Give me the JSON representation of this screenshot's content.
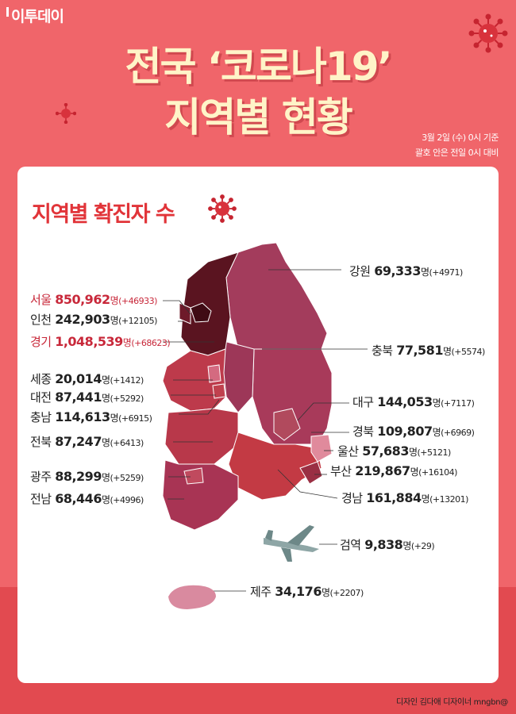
{
  "logo": "이투데이",
  "title_line1": "전국 ‘코로나19’",
  "title_line2": "지역별 현황",
  "basis_line1": "3월 2일 (수) 0시 기준",
  "basis_line2": "괄호 안은 전일 0시 대비",
  "section_title": "지역별 확진자 수",
  "unit": "명",
  "regions": {
    "seoul": {
      "name": "서울",
      "count": "850,962",
      "change": "(+46933)"
    },
    "incheon": {
      "name": "인천",
      "count": "242,903",
      "change": "(+12105)"
    },
    "gyeonggi": {
      "name": "경기",
      "count": "1,048,539",
      "change": "(+68623)"
    },
    "sejong": {
      "name": "세종",
      "count": "20,014",
      "change": "(+1412)"
    },
    "daejeon": {
      "name": "대전",
      "count": "87,441",
      "change": "(+5292)"
    },
    "chungnam": {
      "name": "충남",
      "count": "114,613",
      "change": "(+6915)"
    },
    "jeonbuk": {
      "name": "전북",
      "count": "87,247",
      "change": "(+6413)"
    },
    "gwangju": {
      "name": "광주",
      "count": "88,299",
      "change": "(+5259)"
    },
    "jeonnam": {
      "name": "전남",
      "count": "68,446",
      "change": "(+4996)"
    },
    "gangwon": {
      "name": "강원",
      "count": "69,333",
      "change": "(+4971)"
    },
    "chungbuk": {
      "name": "충북",
      "count": "77,581",
      "change": "(+5574)"
    },
    "daegu": {
      "name": "대구",
      "count": "144,053",
      "change": "(+7117)"
    },
    "gyeongbuk": {
      "name": "경북",
      "count": "109,807",
      "change": "(+6969)"
    },
    "ulsan": {
      "name": "울산",
      "count": "57,683",
      "change": "(+5121)"
    },
    "busan": {
      "name": "부산",
      "count": "219,867",
      "change": "(+16104)"
    },
    "gyeongnam": {
      "name": "경남",
      "count": "161,884",
      "change": "(+13201)"
    },
    "quarantine": {
      "name": "검역",
      "count": "9,838",
      "change": "(+29)"
    },
    "jeju": {
      "name": "제주",
      "count": "34,176",
      "change": "(+2207)"
    }
  },
  "credit": "디자인 김다애 디자이너 mngbn@",
  "colors": {
    "background": "#f0656a",
    "title": "#fff4c8",
    "accent_red": "#e13439",
    "gyeonggi": "#5a1420",
    "seoul": "#3f0b14",
    "gangwon": "#a33c5c",
    "south": "#c0414e",
    "jeju": "#d98a9f"
  },
  "icons": [
    "virus-icon",
    "airplane-icon"
  ]
}
